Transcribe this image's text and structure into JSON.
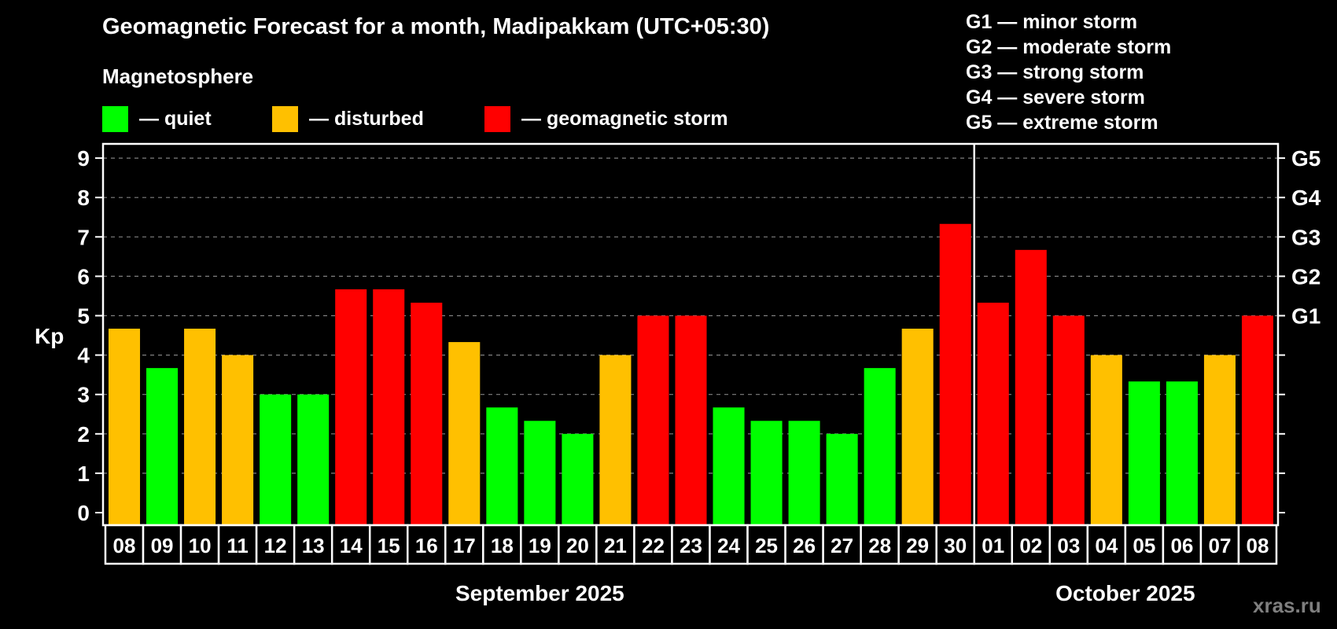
{
  "header": {
    "title": "Geomagnetic Forecast for a month, Madipakkam (UTC+05:30)",
    "subtitle": "Magnetosphere"
  },
  "legend": [
    {
      "label": "— quiet",
      "color": "#00ff00"
    },
    {
      "label": "— disturbed",
      "color": "#ffc000"
    },
    {
      "label": "— geomagnetic storm",
      "color": "#ff0000"
    }
  ],
  "storm_scale": [
    "G1 — minor storm",
    "G2 — moderate storm",
    "G3 — strong storm",
    "G4 — severe storm",
    "G5 — extreme storm"
  ],
  "watermark": "xras.ru",
  "colors": {
    "quiet": "#00ff00",
    "disturbed": "#ffc000",
    "storm": "#ff0000",
    "background": "#000000",
    "grid": "#808080",
    "axis": "#ffffff"
  },
  "chart_data": {
    "type": "bar",
    "title": "Geomagnetic Forecast for a month, Madipakkam (UTC+05:30)",
    "xlabel": "",
    "ylabel": "Kp",
    "ylim": [
      0,
      9
    ],
    "yticks": [
      0,
      1,
      2,
      3,
      4,
      5,
      6,
      7,
      8,
      9
    ],
    "right_axis_labels": {
      "5": "G1",
      "6": "G2",
      "7": "G3",
      "8": "G4",
      "9": "G5"
    },
    "grid": true,
    "legend_position": "top",
    "month_groups": [
      {
        "label": "September 2025",
        "start": 0,
        "end": 22
      },
      {
        "label": "October 2025",
        "start": 23,
        "end": 30
      }
    ],
    "categories": [
      "08",
      "09",
      "10",
      "11",
      "12",
      "13",
      "14",
      "15",
      "16",
      "17",
      "18",
      "19",
      "20",
      "21",
      "22",
      "23",
      "24",
      "25",
      "26",
      "27",
      "28",
      "29",
      "30",
      "01",
      "02",
      "03",
      "04",
      "05",
      "06",
      "07",
      "08"
    ],
    "values": [
      4.67,
      3.67,
      4.67,
      4.0,
      3.0,
      3.0,
      5.67,
      5.67,
      5.33,
      4.33,
      2.67,
      2.33,
      2.0,
      4.0,
      5.0,
      5.0,
      2.67,
      2.33,
      2.33,
      2.0,
      3.67,
      4.67,
      7.33,
      5.33,
      6.67,
      5.0,
      4.0,
      3.33,
      3.33,
      4.0,
      5.0
    ],
    "status": [
      "disturbed",
      "quiet",
      "disturbed",
      "disturbed",
      "quiet",
      "quiet",
      "storm",
      "storm",
      "storm",
      "disturbed",
      "quiet",
      "quiet",
      "quiet",
      "disturbed",
      "storm",
      "storm",
      "quiet",
      "quiet",
      "quiet",
      "quiet",
      "quiet",
      "disturbed",
      "storm",
      "storm",
      "storm",
      "storm",
      "disturbed",
      "quiet",
      "quiet",
      "disturbed",
      "storm"
    ]
  }
}
